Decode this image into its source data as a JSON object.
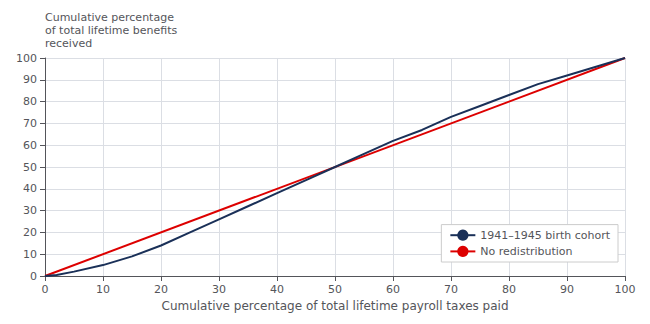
{
  "chart_data": {
    "type": "line",
    "xlabel": "Cumulative percentage of total lifetime payroll taxes paid",
    "ylabel": "Cumulative percentage\nof total lifetime benefits\nreceived",
    "xlim": [
      0,
      100
    ],
    "ylim": [
      0,
      100
    ],
    "xticks": [
      0,
      10,
      20,
      30,
      40,
      50,
      60,
      70,
      80,
      90,
      100
    ],
    "yticks": [
      0,
      10,
      20,
      30,
      40,
      50,
      60,
      70,
      80,
      90,
      100
    ],
    "grid": true,
    "legend": "lower right",
    "series": [
      {
        "name": "1941–1945 birth cohort",
        "color": "#1a3058",
        "x": [
          0,
          2,
          5,
          10,
          15,
          20,
          25,
          30,
          35,
          40,
          45,
          50,
          55,
          60,
          65,
          70,
          75,
          80,
          85,
          90,
          95,
          100
        ],
        "values": [
          0,
          0.5,
          2,
          5,
          9,
          14,
          20,
          26,
          32,
          38,
          44,
          50,
          56,
          62,
          67,
          73,
          78,
          83,
          88,
          92,
          96,
          100
        ]
      },
      {
        "name": "No redistribution",
        "color": "#dd0000",
        "x": [
          0,
          100
        ],
        "values": [
          0,
          100
        ]
      }
    ]
  }
}
